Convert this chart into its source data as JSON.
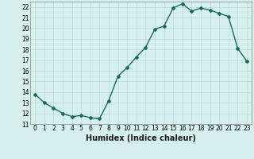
{
  "x": [
    0,
    1,
    2,
    3,
    4,
    5,
    6,
    7,
    8,
    9,
    10,
    11,
    12,
    13,
    14,
    15,
    16,
    17,
    18,
    19,
    20,
    21,
    22,
    23
  ],
  "y": [
    13.8,
    13.0,
    12.5,
    12.0,
    11.7,
    11.8,
    11.6,
    11.5,
    13.2,
    15.5,
    16.3,
    17.3,
    18.2,
    19.9,
    20.2,
    21.9,
    22.3,
    21.6,
    21.9,
    21.7,
    21.4,
    21.1,
    18.1,
    16.9
  ],
  "line_color": "#1a6b5a",
  "marker": "D",
  "marker_size": 2,
  "bg_color": "#d6f0ef",
  "grid_color": "#b8d8d4",
  "xlabel": "Humidex (Indice chaleur)",
  "xlim": [
    -0.5,
    23.5
  ],
  "ylim": [
    11,
    22.5
  ],
  "yticks": [
    11,
    12,
    13,
    14,
    15,
    16,
    17,
    18,
    19,
    20,
    21,
    22
  ],
  "xticks": [
    0,
    1,
    2,
    3,
    4,
    5,
    6,
    7,
    8,
    9,
    10,
    11,
    12,
    13,
    14,
    15,
    16,
    17,
    18,
    19,
    20,
    21,
    22,
    23
  ],
  "tick_fontsize": 5.5,
  "xlabel_fontsize": 7,
  "linewidth": 1.0,
  "spine_color": "#888888"
}
